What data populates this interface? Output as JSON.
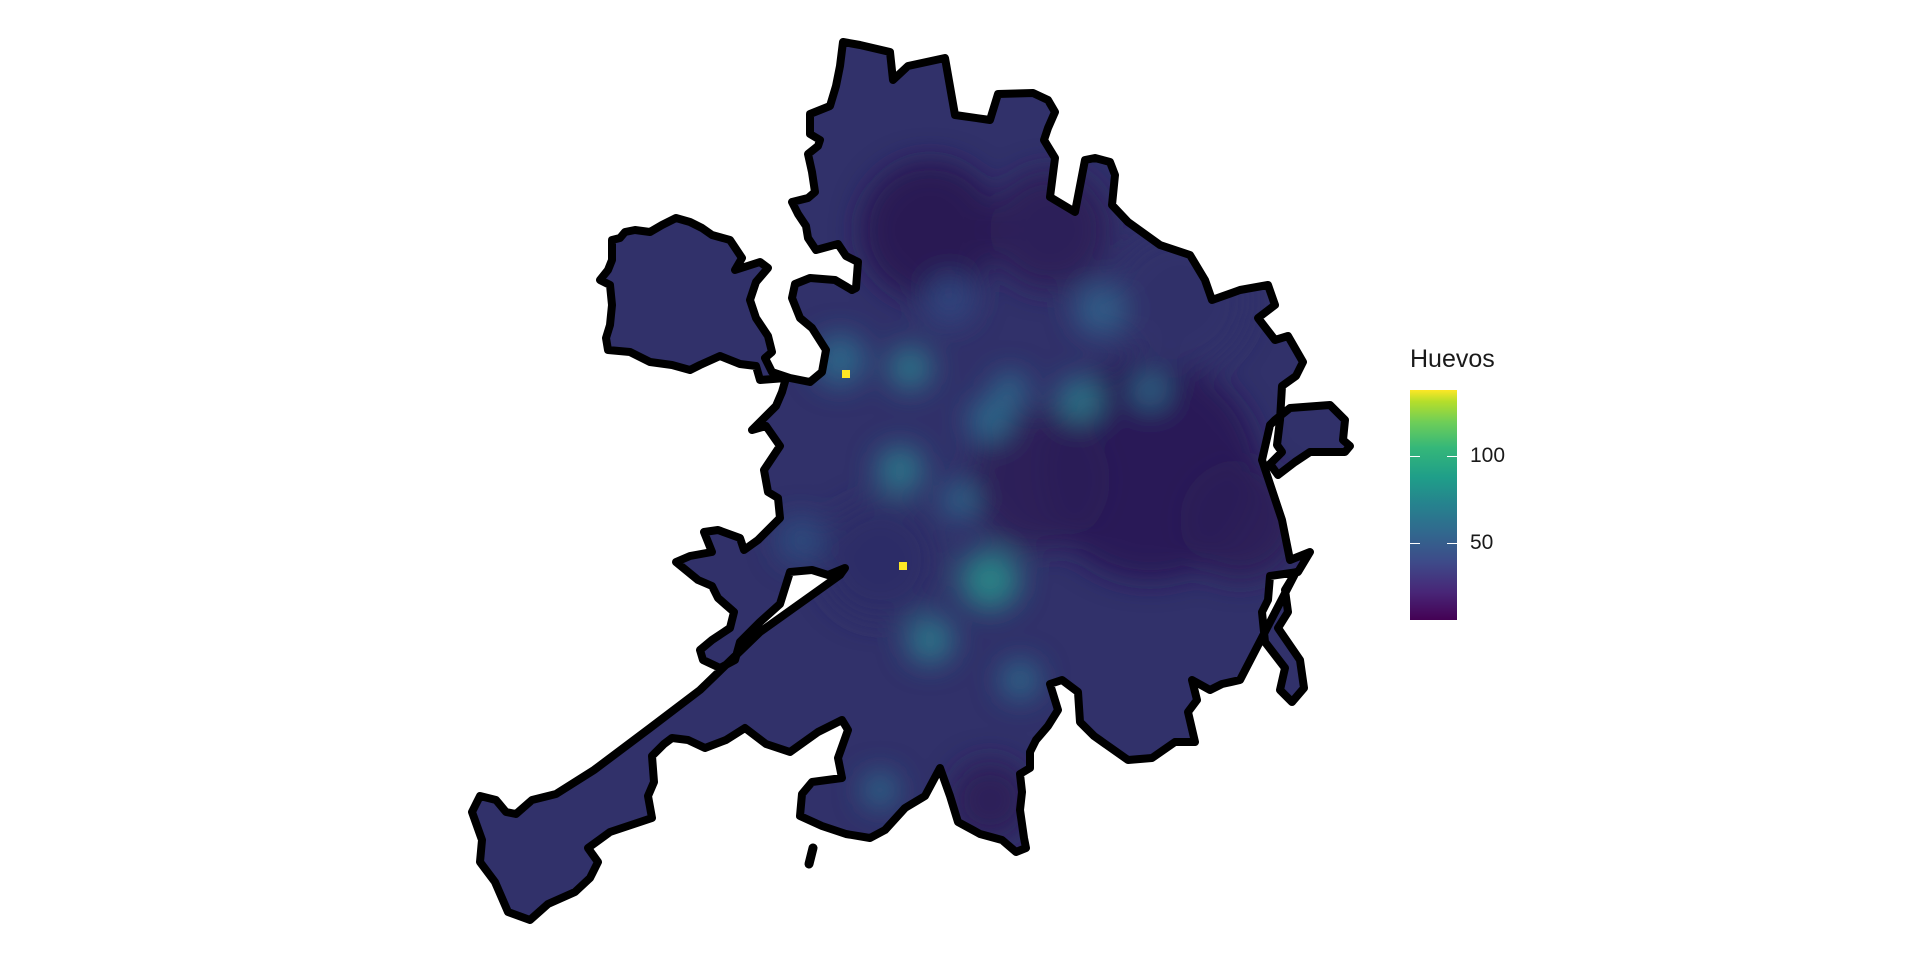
{
  "legend": {
    "title": "Huevos",
    "ticks": [
      {
        "value": 100,
        "label": "100"
      },
      {
        "value": 50,
        "label": "50"
      }
    ],
    "min": 3,
    "max": 140
  },
  "colors": {
    "background_fill": "#31316a",
    "dark_fill": "#2a1a52",
    "outline": "#000000",
    "hotspot": "#fde725"
  },
  "hotspots": [
    {
      "value": 140
    },
    {
      "value": 140
    }
  ]
}
